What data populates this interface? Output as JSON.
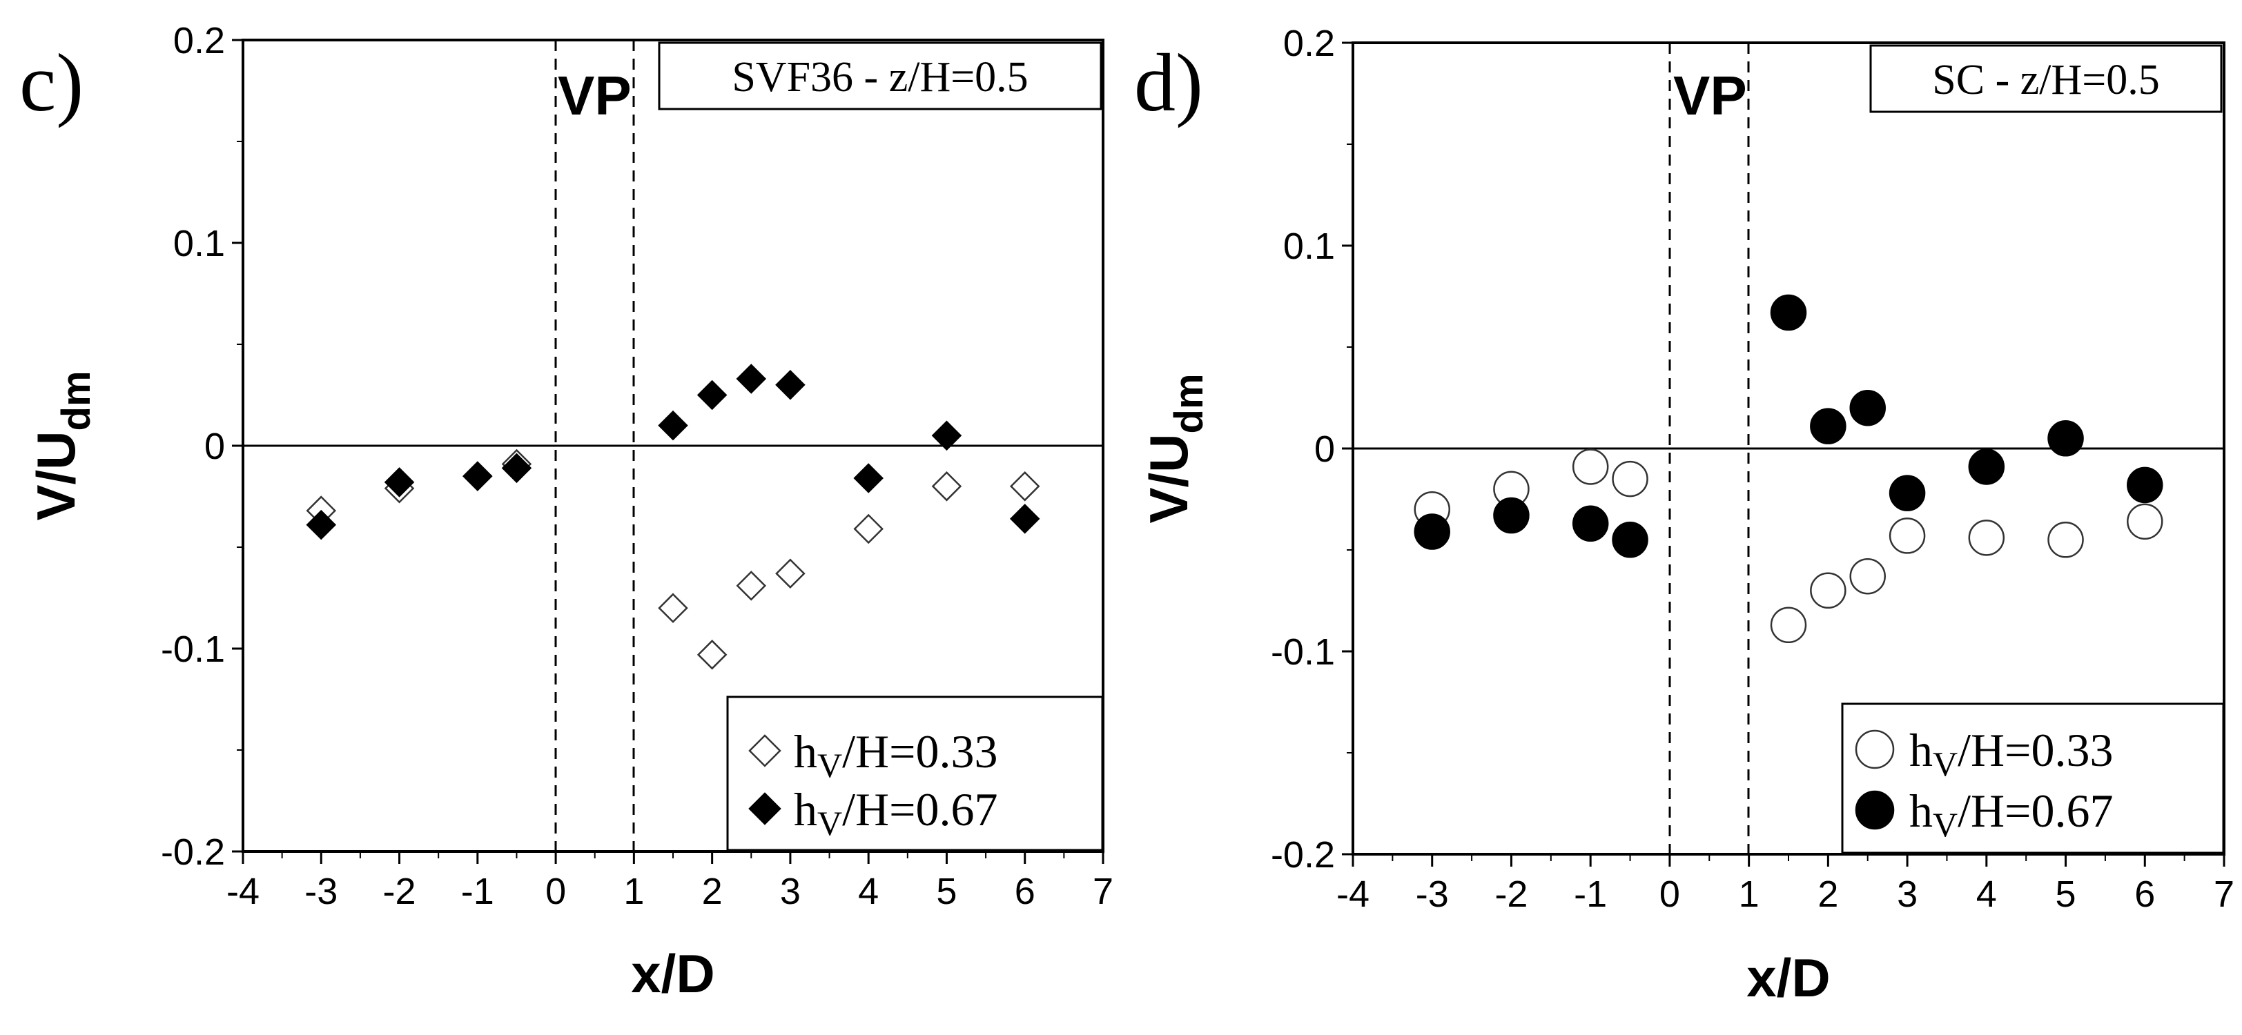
{
  "chart_data": [
    {
      "type": "scatter",
      "panel_letter": "c)",
      "case_label": "SVF36 - z/H=0.5",
      "region_label": "VP",
      "region_x": [
        0,
        1
      ],
      "xlabel": "x/D",
      "ylabel_main": "V/U",
      "ylabel_sub": "dm",
      "xlim": [
        -4,
        7
      ],
      "ylim": [
        -0.2,
        0.2
      ],
      "xticks": [
        -4,
        -3,
        -2,
        -1,
        0,
        1,
        2,
        3,
        4,
        5,
        6,
        7
      ],
      "yticks": [
        -0.2,
        -0.1,
        0,
        0.1,
        0.2
      ],
      "ytick_labels": [
        "-0.2",
        "-0.1",
        "0",
        "0.1",
        "0.2"
      ],
      "marker": "diamond",
      "legend_position": "bottom-right",
      "series": [
        {
          "name": "hV/H=0.33",
          "legend_h": "h",
          "legend_sub": "V",
          "legend_rest": "/H=0.33",
          "filled": false,
          "x": [
            -3,
            -2,
            -1,
            -0.5,
            1.5,
            2,
            2.5,
            3,
            4,
            5,
            6
          ],
          "y": [
            -0.032,
            -0.021,
            -0.015,
            -0.009,
            -0.08,
            -0.103,
            -0.069,
            -0.063,
            -0.041,
            -0.02,
            -0.02
          ]
        },
        {
          "name": "hV/H=0.67",
          "legend_h": "h",
          "legend_sub": "V",
          "legend_rest": "/H=0.67",
          "filled": true,
          "x": [
            -3,
            -2,
            -1,
            -0.5,
            1.5,
            2,
            2.5,
            3,
            4,
            5,
            6
          ],
          "y": [
            -0.039,
            -0.018,
            -0.015,
            -0.011,
            0.01,
            0.025,
            0.033,
            0.03,
            -0.016,
            0.005,
            -0.036
          ]
        }
      ]
    },
    {
      "type": "scatter",
      "panel_letter": "d)",
      "case_label": "SC - z/H=0.5",
      "region_label": "VP",
      "region_x": [
        0,
        1
      ],
      "xlabel": "x/D",
      "ylabel_main": "V/U",
      "ylabel_sub": "dm",
      "xlim": [
        -4,
        7
      ],
      "ylim": [
        -0.2,
        0.2
      ],
      "xticks": [
        -4,
        -3,
        -2,
        -1,
        0,
        1,
        2,
        3,
        4,
        5,
        6,
        7
      ],
      "yticks": [
        -0.2,
        -0.1,
        0,
        0.1,
        0.2
      ],
      "ytick_labels": [
        "-0.2",
        "-0.1",
        "0",
        "0.1",
        "0.2"
      ],
      "marker": "circle",
      "legend_position": "bottom-right",
      "series": [
        {
          "name": "hV/H=0.33",
          "legend_h": "h",
          "legend_sub": "V",
          "legend_rest": "/H=0.33",
          "filled": false,
          "x": [
            -3,
            -2,
            -1,
            -0.5,
            1.5,
            2,
            2.5,
            3,
            4,
            5,
            6
          ],
          "y": [
            -0.03,
            -0.02,
            -0.009,
            -0.015,
            -0.087,
            -0.07,
            -0.063,
            -0.043,
            -0.044,
            -0.045,
            -0.036
          ]
        },
        {
          "name": "hV/H=0.67",
          "legend_h": "h",
          "legend_sub": "V",
          "legend_rest": "/H=0.67",
          "filled": true,
          "x": [
            -3,
            -2,
            -1,
            -0.5,
            1.5,
            2,
            2.5,
            3,
            4,
            5,
            6
          ],
          "y": [
            -0.041,
            -0.033,
            -0.037,
            -0.045,
            0.067,
            0.011,
            0.02,
            -0.022,
            -0.009,
            0.005,
            -0.018
          ]
        }
      ]
    }
  ]
}
